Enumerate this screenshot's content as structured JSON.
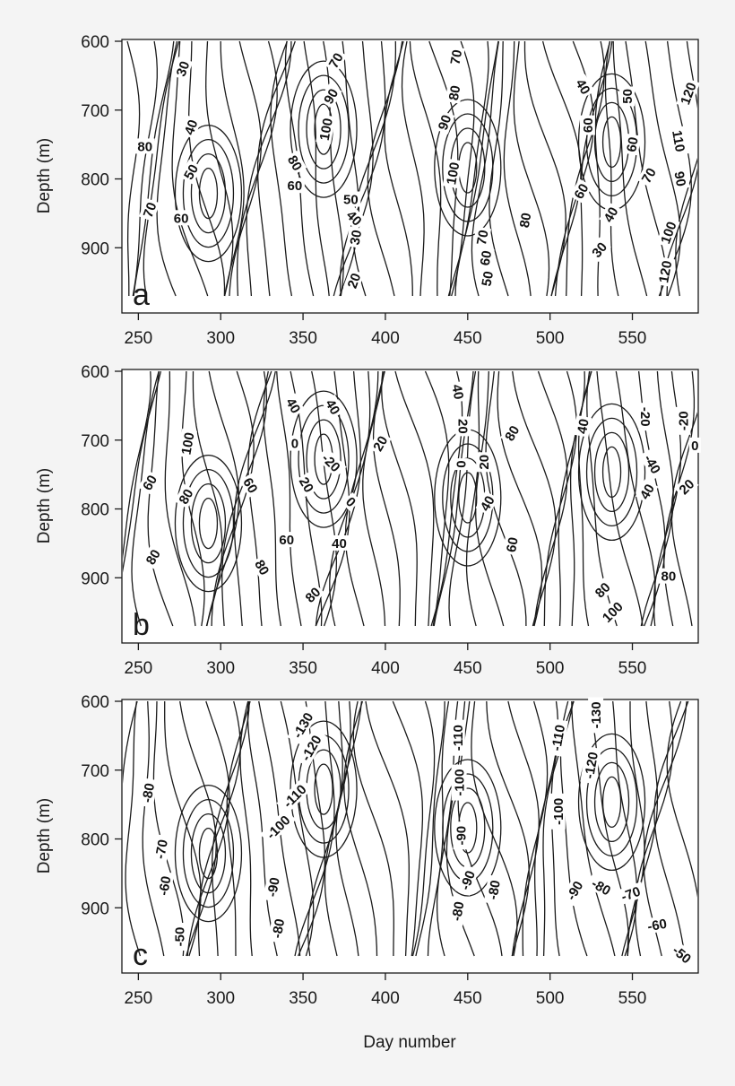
{
  "chart_data": [
    {
      "type": "contour",
      "panel_label": "a",
      "xlabel": "",
      "ylabel": "Depth (m)",
      "xlim": [
        240,
        590
      ],
      "ylim": [
        600,
        970
      ],
      "x_ticks": [
        "250",
        "300",
        "350",
        "400",
        "450",
        "500",
        "550"
      ],
      "y_ticks": [
        "600",
        "700",
        "800",
        "900"
      ],
      "contour_labels": [
        {
          "text": "30",
          "x": 277,
          "y": 640,
          "angle": -70
        },
        {
          "text": "40",
          "x": 282,
          "y": 725,
          "angle": -70
        },
        {
          "text": "50",
          "x": 282,
          "y": 790,
          "angle": -60
        },
        {
          "text": "60",
          "x": 276,
          "y": 857,
          "angle": 0
        },
        {
          "text": "70",
          "x": 257,
          "y": 845,
          "angle": -70
        },
        {
          "text": "80",
          "x": 254,
          "y": 753,
          "angle": 0
        },
        {
          "text": "80",
          "x": 345,
          "y": 777,
          "angle": 60
        },
        {
          "text": "60",
          "x": 345,
          "y": 810,
          "angle": 0
        },
        {
          "text": "70",
          "x": 370,
          "y": 628,
          "angle": -60
        },
        {
          "text": "90",
          "x": 367,
          "y": 680,
          "angle": -60
        },
        {
          "text": "100",
          "x": 364,
          "y": 728,
          "angle": -80
        },
        {
          "text": "50",
          "x": 379,
          "y": 830,
          "angle": 0
        },
        {
          "text": "40",
          "x": 381,
          "y": 857,
          "angle": 45
        },
        {
          "text": "30",
          "x": 382,
          "y": 885,
          "angle": -80
        },
        {
          "text": "20",
          "x": 381,
          "y": 948,
          "angle": -70
        },
        {
          "text": "70",
          "x": 443,
          "y": 623,
          "angle": -80
        },
        {
          "text": "80",
          "x": 442,
          "y": 675,
          "angle": -80
        },
        {
          "text": "90",
          "x": 436,
          "y": 718,
          "angle": -70
        },
        {
          "text": "100",
          "x": 441,
          "y": 792,
          "angle": -80
        },
        {
          "text": "70",
          "x": 459,
          "y": 885,
          "angle": -80
        },
        {
          "text": "60",
          "x": 461,
          "y": 915,
          "angle": -80
        },
        {
          "text": "50",
          "x": 462,
          "y": 945,
          "angle": -80
        },
        {
          "text": "80",
          "x": 485,
          "y": 860,
          "angle": -80
        },
        {
          "text": "60",
          "x": 519,
          "y": 818,
          "angle": -60
        },
        {
          "text": "40",
          "x": 537,
          "y": 852,
          "angle": -60
        },
        {
          "text": "30",
          "x": 530,
          "y": 903,
          "angle": -50
        },
        {
          "text": "40",
          "x": 520,
          "y": 666,
          "angle": 60
        },
        {
          "text": "60",
          "x": 523,
          "y": 722,
          "angle": -90
        },
        {
          "text": "50",
          "x": 547,
          "y": 680,
          "angle": -90
        },
        {
          "text": "60",
          "x": 550,
          "y": 750,
          "angle": -80
        },
        {
          "text": "70",
          "x": 560,
          "y": 795,
          "angle": -60
        },
        {
          "text": "100",
          "x": 572,
          "y": 878,
          "angle": -70
        },
        {
          "text": "120",
          "x": 570,
          "y": 935,
          "angle": -80
        },
        {
          "text": "120",
          "x": 584,
          "y": 676,
          "angle": -70
        },
        {
          "text": "110",
          "x": 578,
          "y": 745,
          "angle": 80
        },
        {
          "text": "90",
          "x": 579,
          "y": 800,
          "angle": 80
        }
      ]
    },
    {
      "type": "contour",
      "panel_label": "b",
      "xlabel": "",
      "ylabel": "Depth (m)",
      "xlim": [
        240,
        590
      ],
      "ylim": [
        600,
        970
      ],
      "x_ticks": [
        "250",
        "300",
        "350",
        "400",
        "450",
        "500",
        "550"
      ],
      "y_ticks": [
        "600",
        "700",
        "800",
        "900"
      ],
      "contour_labels": [
        {
          "text": "100",
          "x": 280,
          "y": 705,
          "angle": -80
        },
        {
          "text": "60",
          "x": 257,
          "y": 762,
          "angle": -60
        },
        {
          "text": "80",
          "x": 279,
          "y": 782,
          "angle": -60
        },
        {
          "text": "80",
          "x": 259,
          "y": 870,
          "angle": -60
        },
        {
          "text": "60",
          "x": 318,
          "y": 766,
          "angle": 60
        },
        {
          "text": "80",
          "x": 325,
          "y": 885,
          "angle": 60
        },
        {
          "text": "40",
          "x": 344,
          "y": 650,
          "angle": 60
        },
        {
          "text": "0",
          "x": 345,
          "y": 705,
          "angle": 0
        },
        {
          "text": "40",
          "x": 368,
          "y": 652,
          "angle": 60
        },
        {
          "text": "-20",
          "x": 367,
          "y": 733,
          "angle": 45
        },
        {
          "text": "20",
          "x": 352,
          "y": 765,
          "angle": 60
        },
        {
          "text": "0",
          "x": 379,
          "y": 790,
          "angle": 45
        },
        {
          "text": "20",
          "x": 397,
          "y": 705,
          "angle": -60
        },
        {
          "text": "60",
          "x": 340,
          "y": 845,
          "angle": 0
        },
        {
          "text": "40",
          "x": 372,
          "y": 850,
          "angle": 0
        },
        {
          "text": "80",
          "x": 356,
          "y": 925,
          "angle": -45
        },
        {
          "text": "40",
          "x": 444,
          "y": 630,
          "angle": 80
        },
        {
          "text": "20",
          "x": 447,
          "y": 680,
          "angle": 90
        },
        {
          "text": "0",
          "x": 446,
          "y": 735,
          "angle": -90
        },
        {
          "text": "20",
          "x": 460,
          "y": 732,
          "angle": -90
        },
        {
          "text": "80",
          "x": 477,
          "y": 690,
          "angle": -60
        },
        {
          "text": "40",
          "x": 462,
          "y": 792,
          "angle": -60
        },
        {
          "text": "60",
          "x": 477,
          "y": 852,
          "angle": -80
        },
        {
          "text": "40",
          "x": 520,
          "y": 680,
          "angle": -80
        },
        {
          "text": "80",
          "x": 532,
          "y": 918,
          "angle": -45
        },
        {
          "text": "100",
          "x": 538,
          "y": 950,
          "angle": -45
        },
        {
          "text": "40",
          "x": 559,
          "y": 775,
          "angle": -60
        },
        {
          "text": "-40",
          "x": 562,
          "y": 735,
          "angle": 60
        },
        {
          "text": "-20",
          "x": 558,
          "y": 666,
          "angle": 90
        },
        {
          "text": "-20",
          "x": 581,
          "y": 672,
          "angle": -90
        },
        {
          "text": "0",
          "x": 588,
          "y": 708,
          "angle": 0
        },
        {
          "text": "20",
          "x": 583,
          "y": 768,
          "angle": -45
        },
        {
          "text": "80",
          "x": 572,
          "y": 898,
          "angle": 0
        }
      ]
    },
    {
      "type": "contour",
      "panel_label": "c",
      "xlabel": "Day number",
      "ylabel": "Depth (m)",
      "xlim": [
        240,
        590
      ],
      "ylim": [
        600,
        970
      ],
      "x_ticks": [
        "250",
        "300",
        "350",
        "400",
        "450",
        "500",
        "550"
      ],
      "y_ticks": [
        "600",
        "700",
        "800",
        "900"
      ],
      "contour_labels": [
        {
          "text": "-80",
          "x": 256,
          "y": 733,
          "angle": -80
        },
        {
          "text": "-70",
          "x": 264,
          "y": 815,
          "angle": -80
        },
        {
          "text": "-60",
          "x": 266,
          "y": 868,
          "angle": -80
        },
        {
          "text": "-50",
          "x": 275,
          "y": 942,
          "angle": -90
        },
        {
          "text": "-130",
          "x": 350,
          "y": 635,
          "angle": -60
        },
        {
          "text": "-120",
          "x": 355,
          "y": 668,
          "angle": -60
        },
        {
          "text": "-110",
          "x": 345,
          "y": 738,
          "angle": -45
        },
        {
          "text": "-100",
          "x": 335,
          "y": 783,
          "angle": -45
        },
        {
          "text": "-90",
          "x": 332,
          "y": 870,
          "angle": -80
        },
        {
          "text": "-80",
          "x": 335,
          "y": 930,
          "angle": -80
        },
        {
          "text": "-110",
          "x": 444,
          "y": 653,
          "angle": -90
        },
        {
          "text": "-100",
          "x": 445,
          "y": 718,
          "angle": -90
        },
        {
          "text": "-90",
          "x": 446,
          "y": 795,
          "angle": -90
        },
        {
          "text": "-90",
          "x": 450,
          "y": 860,
          "angle": -70
        },
        {
          "text": "-80",
          "x": 444,
          "y": 905,
          "angle": -80
        },
        {
          "text": "-80",
          "x": 466,
          "y": 874,
          "angle": -80
        },
        {
          "text": "-110",
          "x": 505,
          "y": 653,
          "angle": -80
        },
        {
          "text": "-100",
          "x": 505,
          "y": 760,
          "angle": -90
        },
        {
          "text": "-130",
          "x": 528,
          "y": 620,
          "angle": -90
        },
        {
          "text": "-120",
          "x": 525,
          "y": 693,
          "angle": -80
        },
        {
          "text": "-90",
          "x": 515,
          "y": 875,
          "angle": -60
        },
        {
          "text": "-80",
          "x": 531,
          "y": 870,
          "angle": 30
        },
        {
          "text": "-70",
          "x": 549,
          "y": 880,
          "angle": -20
        },
        {
          "text": "-60",
          "x": 565,
          "y": 925,
          "angle": -10
        },
        {
          "text": "-50",
          "x": 580,
          "y": 968,
          "angle": 40
        }
      ]
    }
  ]
}
